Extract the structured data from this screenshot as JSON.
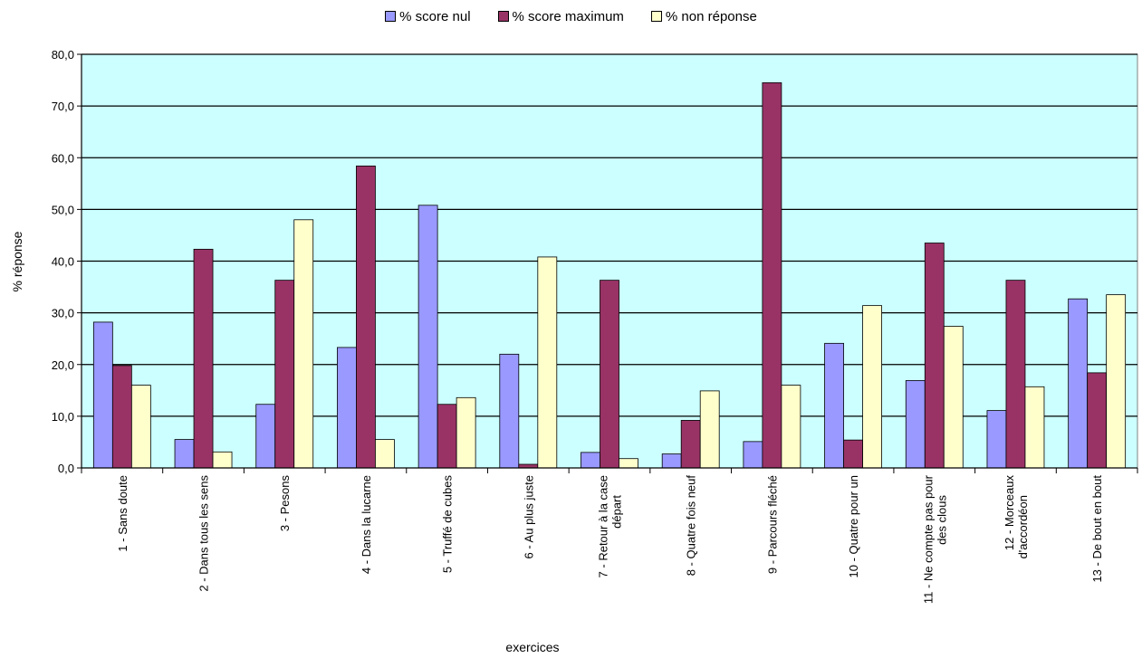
{
  "chart_data": {
    "type": "bar",
    "title": "",
    "xlabel": "exercices",
    "ylabel": "% réponse",
    "ylim": [
      0,
      80
    ],
    "yticks": [
      "0,0",
      "10,0",
      "20,0",
      "30,0",
      "40,0",
      "50,0",
      "60,0",
      "70,0",
      "80,0"
    ],
    "grid": true,
    "legend_position": "top-center",
    "plot_background": "#ccffff",
    "categories": [
      [
        "1 - Sans doute"
      ],
      [
        "2 - Dans tous les sens"
      ],
      [
        "3 - Pesons"
      ],
      [
        "4 - Dans la lucarne"
      ],
      [
        "5 - Truffé de cubes"
      ],
      [
        "6 - Au plus juste"
      ],
      [
        "7 - Retour à la case",
        "départ"
      ],
      [
        "8 - Quatre fois neuf"
      ],
      [
        "9 - Parcours fléché"
      ],
      [
        "10 - Quatre pour un"
      ],
      [
        "11 - Ne compte pas pour",
        "des clous"
      ],
      [
        "12 - Morceaux",
        "d'accordéon"
      ],
      [
        "13 - De bout en bout"
      ]
    ],
    "series": [
      {
        "name": "% score nul",
        "color": "#9999ff",
        "values": [
          28.2,
          5.5,
          12.3,
          23.3,
          50.8,
          22.0,
          3.0,
          2.7,
          5.1,
          24.1,
          16.9,
          11.1,
          32.7
        ]
      },
      {
        "name": "% score maximum",
        "color": "#993366",
        "values": [
          19.8,
          42.3,
          36.3,
          58.4,
          12.3,
          0.7,
          36.3,
          9.2,
          74.5,
          5.4,
          43.5,
          36.3,
          18.4
        ]
      },
      {
        "name": "% non réponse",
        "color": "#ffffcc",
        "values": [
          16.0,
          3.1,
          48.0,
          5.5,
          13.6,
          40.8,
          1.8,
          14.9,
          16.0,
          31.4,
          27.4,
          15.7,
          33.5
        ]
      }
    ]
  }
}
